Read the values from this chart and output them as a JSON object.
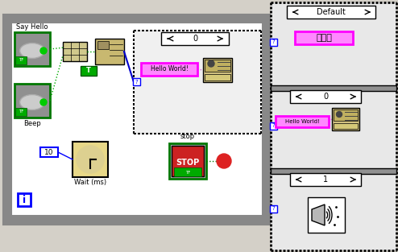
{
  "bg": "#d4d0c8",
  "white": "#ffffff",
  "black": "#000000",
  "green_dark": "#007700",
  "green_bright": "#00cc00",
  "magenta": "#ff00ff",
  "magenta_fill": "#ff88ff",
  "blue": "#0000ff",
  "red": "#cc0000",
  "gray": "#808080",
  "gray_light": "#c0c0c0",
  "tan": "#e8d888",
  "tan2": "#d0c080",
  "tan3": "#c8b870",
  "green_const": "#00aa00",
  "while_border": "#888888",
  "case_bg": "#f0f0f0",
  "say_hello": "Say Hello",
  "beep": "Beep",
  "wait_ms": "Wait (ms)",
  "stop_lbl": "stop",
  "default_lbl": "Default",
  "cn_text": "沒啊事",
  "hw": "Hello World!",
  "zero": "0",
  "one": "1",
  "tf": "TF",
  "i_lbl": "i",
  "ten": "10",
  "stop_txt": "STOP",
  "q": "?"
}
